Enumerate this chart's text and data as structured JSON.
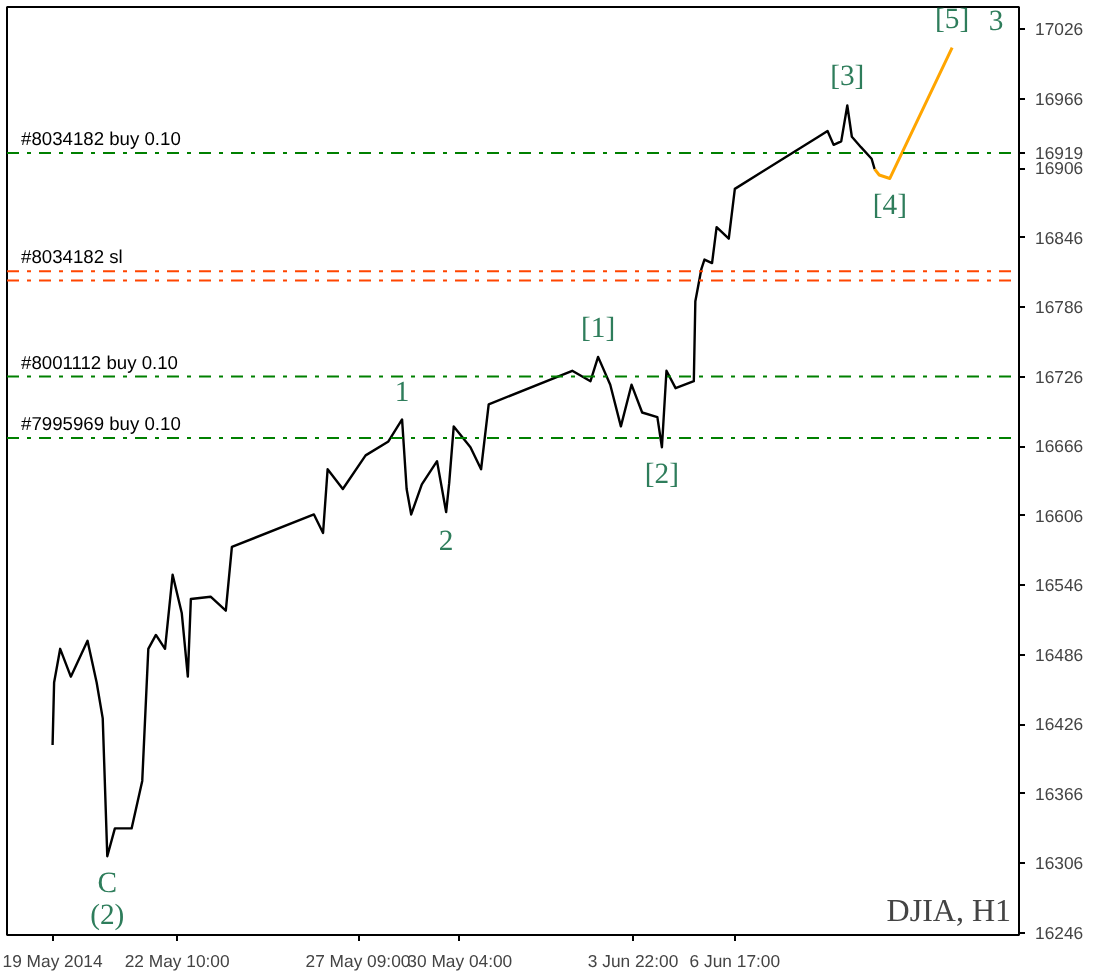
{
  "chart_data": {
    "type": "line",
    "x": [
      "2014-05-19T00:00",
      "2014-05-19T01:00",
      "2014-05-19T05:00",
      "2014-05-19T12:00",
      "2014-05-19T23:00",
      "2014-05-20T05:00",
      "2014-05-20T09:00",
      "2014-05-20T12:00",
      "2014-05-20T17:00",
      "2014-05-21T04:00",
      "2014-05-21T11:00",
      "2014-05-21T15:00",
      "2014-05-21T20:00",
      "2014-05-22T02:00",
      "2014-05-22T07:00",
      "2014-05-22T13:00",
      "2014-05-22T17:00",
      "2014-05-22T19:00",
      "2014-05-23T08:00",
      "2014-05-23T18:00",
      "2014-05-23T22:00",
      "2014-05-26T04:00",
      "2014-05-26T10:00",
      "2014-05-26T13:00",
      "2014-05-26T23:00",
      "2014-05-27T14:00",
      "2014-05-28T05:00",
      "2014-05-28T14:00",
      "2014-05-28T17:00",
      "2014-05-28T20:00",
      "2014-05-29T03:00",
      "2014-05-29T13:00",
      "2014-05-29T19:00",
      "2014-05-29T21:00",
      "2014-05-30T00:00",
      "2014-05-30T11:00",
      "2014-05-30T18:00",
      "2014-05-30T23:00",
      "2014-06-02T06:00",
      "2014-06-02T18:00",
      "2014-06-02T23:00",
      "2014-06-03T07:00",
      "2014-06-03T14:00",
      "2014-06-03T21:00",
      "2014-06-04T04:00",
      "2014-06-04T14:00",
      "2014-06-04T17:00",
      "2014-06-04T20:00",
      "2014-06-05T02:00",
      "2014-06-05T14:00",
      "2014-06-05T15:00",
      "2014-06-05T19:00",
      "2014-06-05T21:00",
      "2014-06-06T02:00",
      "2014-06-06T05:00",
      "2014-06-06T13:00",
      "2014-06-06T17:00",
      "2014-06-09T00:00",
      "2014-06-09T06:00",
      "2014-06-09T10:00",
      "2014-06-09T15:00",
      "2014-06-09T19:00",
      "2014-06-09T22:00",
      "2014-06-10T04:00",
      "2014-06-10T11:00",
      "2014-06-10T13:00"
    ],
    "xlim": [
      "2014-05-17T18:00",
      "2014-06-14T12:00"
    ],
    "xticks": [
      {
        "value": "2014-05-19T00:00",
        "label": "19 May 2014"
      },
      {
        "value": "2014-05-22T10:00",
        "label": "22 May 10:00"
      },
      {
        "value": "2014-05-27T09:00",
        "label": "27 May 09:00"
      },
      {
        "value": "2014-05-30T04:00",
        "label": "30 May 04:00"
      },
      {
        "value": "2014-06-03T22:00",
        "label": "3 Jun 22:00"
      },
      {
        "value": "2014-06-06T17:00",
        "label": "6 Jun 17:00"
      }
    ],
    "ylim": [
      16244,
      17045
    ],
    "yticks": [
      16246,
      16306,
      16366,
      16426,
      16486,
      16546,
      16606,
      16666,
      16726,
      16786,
      16846,
      16906,
      16919,
      16966,
      17026
    ],
    "series": [
      {
        "color": "#000000",
        "values": [
          16408,
          16462,
          16491,
          16467,
          16498,
          16462,
          16431,
          16312,
          16336,
          16336,
          16377,
          16491,
          16503,
          16491,
          16555,
          16522,
          16467,
          16534,
          16536,
          16524,
          16579,
          16607,
          16591,
          16646,
          16629,
          16658,
          16670,
          16689,
          16629,
          16607,
          16633,
          16653,
          16609,
          16634,
          16683,
          16665,
          16646,
          16702,
          16731,
          16722,
          16743,
          16719,
          16683,
          16719,
          16695,
          16691,
          16665,
          16731,
          16716,
          16722,
          16791,
          16819,
          16827,
          16824,
          16855,
          16845,
          16888,
          16933,
          16938,
          16926,
          16929,
          16960,
          16933,
          16924,
          16914,
          16905
        ]
      },
      {
        "color": "#ffa500",
        "x": [
          "2014-06-10T13:00",
          "2014-06-10T16:00",
          "2014-06-10T23:00",
          "2014-06-12T16:00"
        ],
        "values": [
          16905,
          16900,
          16897,
          17010
        ]
      }
    ],
    "ref_lines": [
      {
        "axis": "y",
        "value": 16919,
        "label": "#8034182 buy 0.10",
        "color": "#008000",
        "line_style": "dashdot"
      },
      {
        "axis": "y",
        "value": 16817,
        "label": "#8034182 sl",
        "color": "#ff4500",
        "line_style": "dashdot"
      },
      {
        "axis": "y",
        "value": 16809,
        "color": "#ff4500",
        "line_style": "dashdot"
      },
      {
        "axis": "y",
        "value": 16726,
        "label": "#8001112 buy 0.10",
        "color": "#008000",
        "line_style": "dashdot"
      },
      {
        "axis": "y",
        "value": 16673,
        "label": "#7995969 buy 0.10",
        "color": "#008000",
        "line_style": "dashdot"
      }
    ],
    "annotations": [
      {
        "text": "[1]",
        "x": "2014-06-02T23:00",
        "y": 16743
      },
      {
        "text": "[2]",
        "x": "2014-06-04T17:00",
        "y": 16665
      },
      {
        "text": "[3]",
        "x": "2014-06-09T19:00",
        "y": 16960
      },
      {
        "text": "[4]",
        "x": "2014-06-10T23:00",
        "y": 16897
      },
      {
        "text": "[5]",
        "x": "2014-06-12T16:00",
        "y": 17010
      },
      {
        "text": "3",
        "x": "2014-06-12T16:00",
        "y": 17010
      },
      {
        "text": "1",
        "x": "2014-05-28T14:00",
        "y": 16689
      },
      {
        "text": "2",
        "x": "2014-05-29T19:00",
        "y": 16609
      },
      {
        "text": "C",
        "x": "2014-05-20T12:00",
        "y": 16312
      },
      {
        "text": "(2)",
        "x": "2014-05-20T12:00",
        "y": 16312
      },
      "DJIA, H1"
    ],
    "grid": false,
    "marker": "none",
    "line_style": "solid"
  }
}
